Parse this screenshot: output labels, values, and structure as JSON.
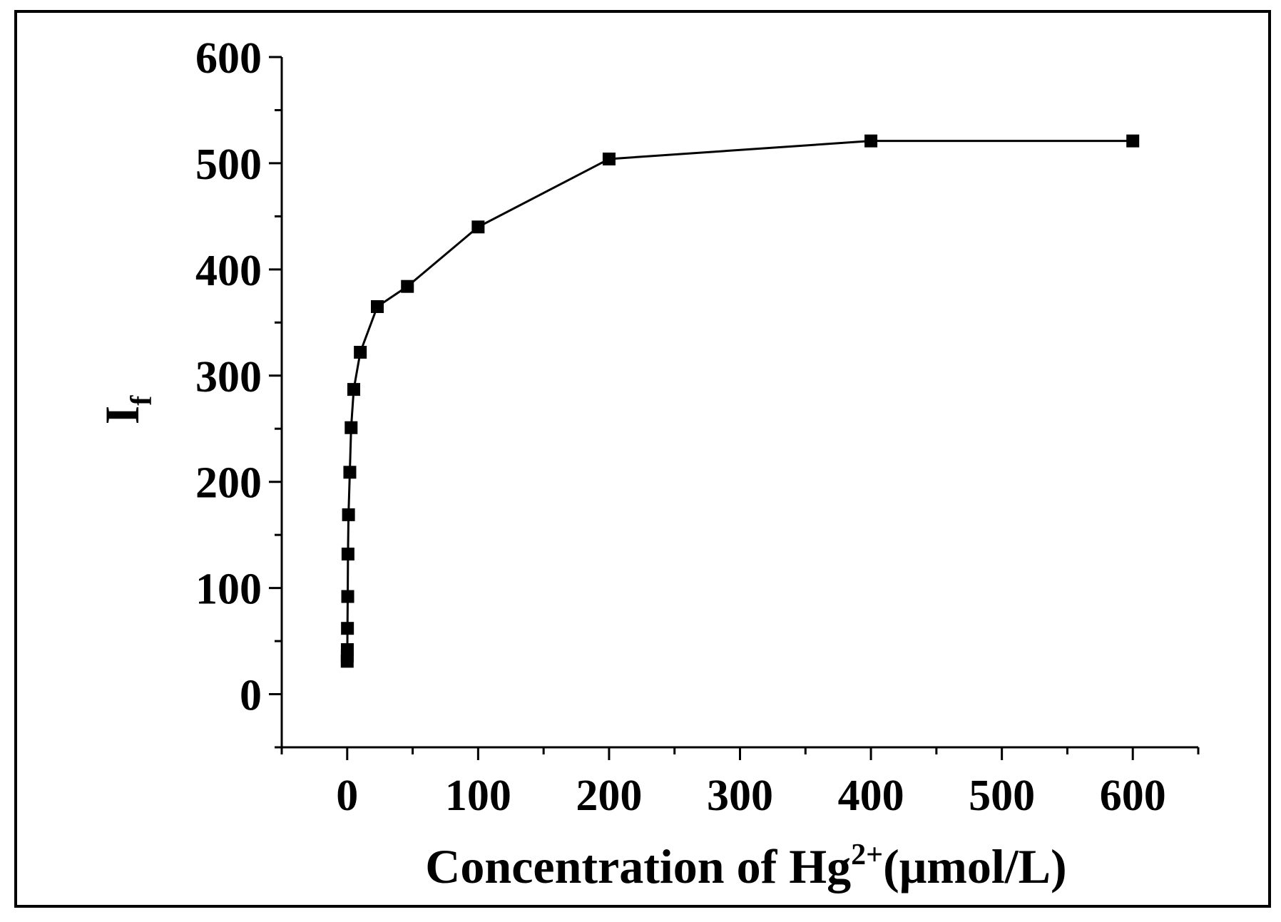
{
  "chart_data": {
    "type": "line",
    "xlabel": "Concentration of Hg",
    "xlabel_sup": "2+",
    "xlabel_unit": "(μmol/L)",
    "ylabel": "I",
    "ylabel_sub": "f",
    "xlim": [
      -50,
      650
    ],
    "ylim": [
      -50,
      600
    ],
    "xticks": [
      0,
      100,
      200,
      300,
      400,
      500,
      600
    ],
    "yticks": [
      0,
      100,
      200,
      300,
      400,
      500,
      600
    ],
    "xtick_labels": [
      "0",
      "100",
      "200",
      "300",
      "400",
      "500",
      "600"
    ],
    "ytick_labels": [
      "0",
      "100",
      "200",
      "300",
      "400",
      "500",
      "600"
    ],
    "grid": false,
    "marker": "square",
    "color": "#000000",
    "series": [
      {
        "x": [
          0,
          0.05,
          0.1,
          0.2,
          0.4,
          0.6,
          1,
          2,
          3,
          5,
          10,
          23,
          46,
          100,
          200,
          400,
          600
        ],
        "y": [
          31,
          36,
          42,
          62,
          92,
          132,
          169,
          209,
          251,
          287,
          322,
          365,
          384,
          440,
          504,
          521,
          521
        ]
      }
    ]
  }
}
